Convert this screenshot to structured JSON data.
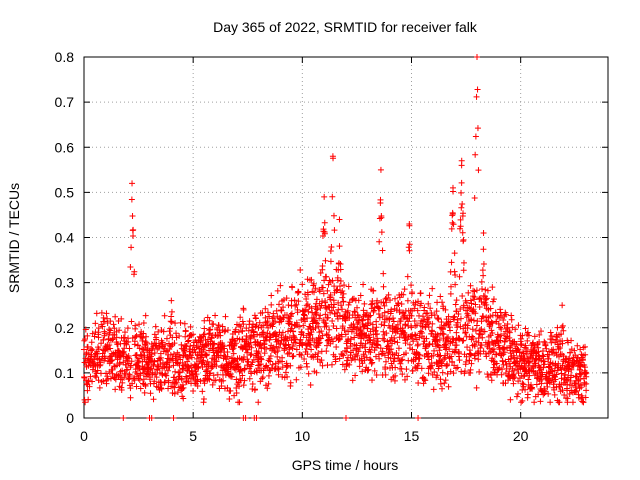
{
  "chart_data": {
    "type": "scatter",
    "title": "Day 365 of 2022, SRMTID for receiver falk",
    "xlabel": "GPS time / hours",
    "ylabel": "SRMTID / TECUs",
    "xlim": [
      0,
      24
    ],
    "ylim": [
      0,
      0.8
    ],
    "x_ticks": [
      0,
      5,
      10,
      15,
      20
    ],
    "y_ticks": [
      0,
      0.1,
      0.2,
      0.3,
      0.4,
      0.5,
      0.6,
      0.7,
      0.8
    ],
    "x_tick_labels": [
      "0",
      "5",
      "10",
      "15",
      "20"
    ],
    "y_tick_labels": [
      "0",
      "0.1",
      "0.2",
      "0.3",
      "0.4",
      "0.5",
      "0.6",
      "0.7",
      "0.8"
    ],
    "grid": true,
    "marker": "+",
    "color": "#ff0000",
    "time_range_hours": [
      0,
      23
    ],
    "baseline_profile": [
      [
        0.0,
        0.12
      ],
      [
        0.5,
        0.15
      ],
      [
        1.0,
        0.16
      ],
      [
        1.5,
        0.15
      ],
      [
        2.0,
        0.14
      ],
      [
        2.5,
        0.14
      ],
      [
        3.0,
        0.14
      ],
      [
        3.5,
        0.13
      ],
      [
        4.0,
        0.14
      ],
      [
        4.5,
        0.13
      ],
      [
        5.0,
        0.14
      ],
      [
        5.5,
        0.15
      ],
      [
        6.0,
        0.15
      ],
      [
        6.5,
        0.15
      ],
      [
        7.0,
        0.14
      ],
      [
        7.5,
        0.15
      ],
      [
        8.0,
        0.16
      ],
      [
        8.5,
        0.17
      ],
      [
        9.0,
        0.2
      ],
      [
        9.5,
        0.21
      ],
      [
        10.0,
        0.22
      ],
      [
        10.5,
        0.21
      ],
      [
        11.0,
        0.24
      ],
      [
        11.5,
        0.24
      ],
      [
        12.0,
        0.22
      ],
      [
        12.5,
        0.2
      ],
      [
        13.0,
        0.21
      ],
      [
        13.5,
        0.21
      ],
      [
        14.0,
        0.2
      ],
      [
        14.5,
        0.2
      ],
      [
        15.0,
        0.21
      ],
      [
        15.5,
        0.19
      ],
      [
        16.0,
        0.18
      ],
      [
        16.5,
        0.17
      ],
      [
        17.0,
        0.18
      ],
      [
        17.5,
        0.2
      ],
      [
        18.0,
        0.22
      ],
      [
        18.5,
        0.2
      ],
      [
        19.0,
        0.17
      ],
      [
        19.5,
        0.15
      ],
      [
        20.0,
        0.14
      ],
      [
        20.5,
        0.13
      ],
      [
        21.0,
        0.12
      ],
      [
        21.5,
        0.12
      ],
      [
        22.0,
        0.12
      ],
      [
        22.5,
        0.11
      ],
      [
        23.0,
        0.1
      ]
    ],
    "peaks": [
      {
        "x": 2.2,
        "y": 0.52
      },
      {
        "x": 4.0,
        "y": 0.26
      },
      {
        "x": 11.0,
        "y": 0.49
      },
      {
        "x": 11.4,
        "y": 0.58
      },
      {
        "x": 11.7,
        "y": 0.44
      },
      {
        "x": 13.6,
        "y": 0.55
      },
      {
        "x": 14.9,
        "y": 0.43
      },
      {
        "x": 16.9,
        "y": 0.51
      },
      {
        "x": 17.3,
        "y": 0.57
      },
      {
        "x": 18.0,
        "y": 0.8
      },
      {
        "x": 18.3,
        "y": 0.41
      },
      {
        "x": 21.9,
        "y": 0.25
      }
    ],
    "zero_values_at_x": [
      1.8,
      3.0,
      3.1,
      4.1,
      7.3,
      7.4,
      7.8,
      7.9,
      12.0,
      15.3
    ]
  }
}
